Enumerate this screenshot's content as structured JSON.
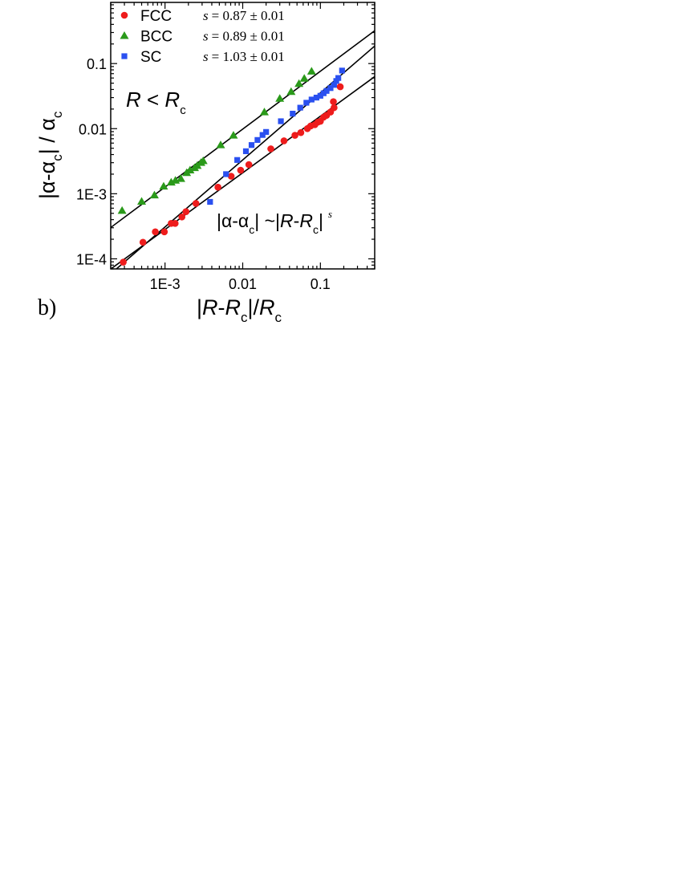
{
  "chart_data": {
    "type": "scatter",
    "panel_label": "b)",
    "xscale": "log",
    "yscale": "log",
    "xlim": [
      0.0002,
      0.5
    ],
    "ylim": [
      7e-05,
      0.87
    ],
    "xticks": [
      {
        "value": 0.001,
        "label": "1E-3"
      },
      {
        "value": 0.01,
        "label": "0.01"
      },
      {
        "value": 0.1,
        "label": "0.1"
      }
    ],
    "yticks": [
      {
        "value": 0.0001,
        "label": "1E-4"
      },
      {
        "value": 0.001,
        "label": "1E-3"
      },
      {
        "value": 0.01,
        "label": "0.01"
      },
      {
        "value": 0.1,
        "label": "0.1"
      }
    ],
    "xlabel": {
      "bar1": "|",
      "R1": "R",
      "dash": "-",
      "R2": "R",
      "sub1": "c",
      "mid": "|/",
      "R3": "R",
      "sub2": "c"
    },
    "ylabel": {
      "p1": "|α-α",
      "sub1": "c",
      "p2": "| / α",
      "sub2": "c"
    },
    "annotations": {
      "condition": {
        "R1": "R",
        "lt": " < ",
        "R2": "R",
        "sub": "c"
      },
      "law": {
        "p1": "|α-α",
        "sub1": "c",
        "p2": "| ~|",
        "R1": "R",
        "dash": "-",
        "R2": "R",
        "sub2": "c",
        "p3": "|",
        "exp": "s"
      }
    },
    "legend_placement": "top-left",
    "series": [
      {
        "name": "FCC",
        "fit_text": "= 0.87 ± 0.01",
        "s_symbol": "s",
        "slope": 0.87,
        "marker": "circle",
        "color": "#ee1c1c",
        "fit": {
          "x0": 0.5,
          "y0": 0.063
        },
        "points": [
          [
            0.00029,
            8.9e-05
          ],
          [
            0.00052,
            0.00018
          ],
          [
            0.00075,
            0.00026
          ],
          [
            0.00098,
            0.00026
          ],
          [
            0.0012,
            0.00035
          ],
          [
            0.00135,
            0.00035
          ],
          [
            0.00165,
            0.00044
          ],
          [
            0.00186,
            0.00053
          ],
          [
            0.0025,
            0.00071
          ],
          [
            0.0048,
            0.00126
          ],
          [
            0.0071,
            0.00186
          ],
          [
            0.0094,
            0.0023
          ],
          [
            0.012,
            0.0028
          ],
          [
            0.023,
            0.0049
          ],
          [
            0.034,
            0.0065
          ],
          [
            0.047,
            0.0079
          ],
          [
            0.056,
            0.0087
          ],
          [
            0.068,
            0.01
          ],
          [
            0.075,
            0.011
          ],
          [
            0.085,
            0.0115
          ],
          [
            0.093,
            0.0126
          ],
          [
            0.1,
            0.013
          ],
          [
            0.11,
            0.015
          ],
          [
            0.12,
            0.016
          ],
          [
            0.135,
            0.018
          ],
          [
            0.15,
            0.021
          ],
          [
            0.147,
            0.026
          ],
          [
            0.18,
            0.044
          ]
        ]
      },
      {
        "name": "BCC",
        "fit_text": "= 0.89 ± 0.01",
        "s_symbol": "s",
        "slope": 0.89,
        "marker": "triangle",
        "color": "#2a9a1a",
        "fit": {
          "x0": 0.5,
          "y0": 0.32
        },
        "points": [
          [
            0.00028,
            0.00055
          ],
          [
            0.0005,
            0.00076
          ],
          [
            0.00073,
            0.00095
          ],
          [
            0.00096,
            0.0013
          ],
          [
            0.0012,
            0.0015
          ],
          [
            0.00136,
            0.0016
          ],
          [
            0.0016,
            0.0017
          ],
          [
            0.0019,
            0.0021
          ],
          [
            0.0021,
            0.0023
          ],
          [
            0.0024,
            0.0025
          ],
          [
            0.0026,
            0.0027
          ],
          [
            0.0029,
            0.003
          ],
          [
            0.0031,
            0.0032
          ],
          [
            0.0052,
            0.0056
          ],
          [
            0.0076,
            0.0079
          ],
          [
            0.019,
            0.018
          ],
          [
            0.03,
            0.029
          ],
          [
            0.042,
            0.037
          ],
          [
            0.053,
            0.049
          ],
          [
            0.062,
            0.059
          ],
          [
            0.077,
            0.076
          ]
        ]
      },
      {
        "name": "SC",
        "fit_text": "= 1.03 ± 0.01",
        "s_symbol": "s",
        "slope": 1.03,
        "marker": "square",
        "color": "#2a50f0",
        "fit": {
          "x0": 0.5,
          "y0": 0.186
        },
        "points": [
          [
            0.0038,
            0.00075
          ],
          [
            0.0061,
            0.002
          ],
          [
            0.0085,
            0.0033
          ],
          [
            0.011,
            0.0045
          ],
          [
            0.013,
            0.0056
          ],
          [
            0.0155,
            0.0067
          ],
          [
            0.018,
            0.008
          ],
          [
            0.02,
            0.0089
          ],
          [
            0.031,
            0.013
          ],
          [
            0.044,
            0.017
          ],
          [
            0.055,
            0.021
          ],
          [
            0.066,
            0.025
          ],
          [
            0.077,
            0.028
          ],
          [
            0.089,
            0.03
          ],
          [
            0.1,
            0.032
          ],
          [
            0.11,
            0.035
          ],
          [
            0.12,
            0.038
          ],
          [
            0.135,
            0.042
          ],
          [
            0.15,
            0.047
          ],
          [
            0.16,
            0.054
          ],
          [
            0.17,
            0.06
          ],
          [
            0.19,
            0.078
          ]
        ]
      }
    ]
  }
}
